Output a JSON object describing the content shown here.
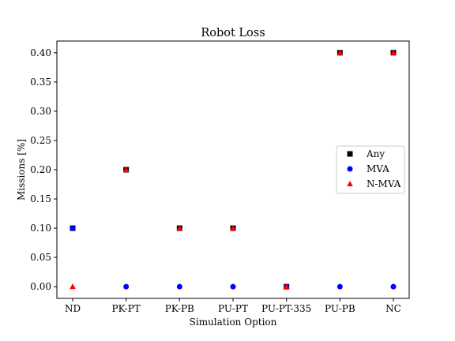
{
  "chart_data": {
    "type": "scatter",
    "title": "Robot Loss",
    "xlabel": "Simulation Option",
    "ylabel": "Missions [%]",
    "categories": [
      "ND",
      "PK-PT",
      "PK-PB",
      "PU-PT",
      "PU-PT-335",
      "PU-PB",
      "NC"
    ],
    "ylim": [
      -0.02,
      0.42
    ],
    "yticks": [
      0.0,
      0.05,
      0.1,
      0.15,
      0.2,
      0.25,
      0.3,
      0.35,
      0.4
    ],
    "ytick_labels": [
      "0.00",
      "0.05",
      "0.10",
      "0.15",
      "0.20",
      "0.25",
      "0.30",
      "0.35",
      "0.40"
    ],
    "grid": false,
    "legend_position": "center-right",
    "series": [
      {
        "name": "Any",
        "marker": "square",
        "color": "#000000",
        "values": [
          0.1,
          0.2,
          0.1,
          0.1,
          0.0,
          0.4,
          0.4
        ]
      },
      {
        "name": "MVA",
        "marker": "circle",
        "color": "#0000ff",
        "values": [
          0.1,
          0.0,
          0.0,
          0.0,
          0.0,
          0.0,
          0.0
        ]
      },
      {
        "name": "N-MVA",
        "marker": "triangle",
        "color": "#ff0000",
        "values": [
          0.0,
          0.2,
          0.1,
          0.1,
          0.0,
          0.4,
          0.4
        ]
      }
    ]
  }
}
